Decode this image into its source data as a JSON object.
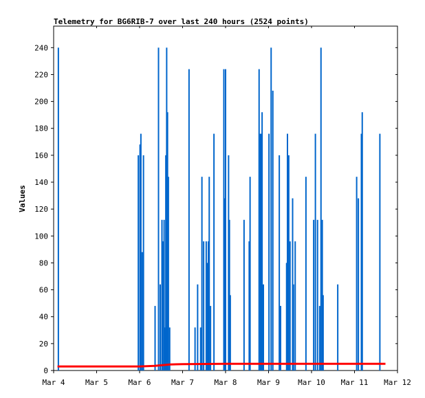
{
  "chart_data": {
    "type": "bar",
    "title": "Telemetry for BG6RIB-7 over last 240 hours (2524 points)",
    "ylabel": "Values",
    "xlabel": "",
    "ylim": [
      0,
      256
    ],
    "xlim": [
      0,
      8
    ],
    "y_ticks": [
      0,
      20,
      40,
      60,
      80,
      100,
      120,
      140,
      160,
      180,
      200,
      220,
      240
    ],
    "x_ticks": [
      {
        "x": 0,
        "label": "Mar 4"
      },
      {
        "x": 1,
        "label": "Mar 5"
      },
      {
        "x": 2,
        "label": "Mar 6"
      },
      {
        "x": 3,
        "label": "Mar 7"
      },
      {
        "x": 4,
        "label": "Mar 8"
      },
      {
        "x": 5,
        "label": "Mar 9"
      },
      {
        "x": 6,
        "label": "Mar 10"
      },
      {
        "x": 7,
        "label": "Mar 11"
      },
      {
        "x": 8,
        "label": "Mar 12"
      }
    ],
    "series": [
      {
        "color": "#0066cc",
        "style": "impulses",
        "points": [
          [
            0.11,
            240
          ],
          [
            1.97,
            160
          ],
          [
            2.01,
            168
          ],
          [
            2.03,
            176
          ],
          [
            2.06,
            88
          ],
          [
            2.09,
            160
          ],
          [
            2.36,
            48
          ],
          [
            2.44,
            240
          ],
          [
            2.48,
            64
          ],
          [
            2.52,
            112
          ],
          [
            2.54,
            96
          ],
          [
            2.57,
            112
          ],
          [
            2.59,
            32
          ],
          [
            2.61,
            160
          ],
          [
            2.63,
            240
          ],
          [
            2.65,
            192
          ],
          [
            2.67,
            144
          ],
          [
            2.7,
            32
          ],
          [
            3.15,
            224
          ],
          [
            3.29,
            32
          ],
          [
            3.35,
            64
          ],
          [
            3.42,
            32
          ],
          [
            3.45,
            144
          ],
          [
            3.49,
            96
          ],
          [
            3.55,
            96
          ],
          [
            3.58,
            80
          ],
          [
            3.6,
            96
          ],
          [
            3.62,
            144
          ],
          [
            3.65,
            48
          ],
          [
            3.73,
            176
          ],
          [
            3.96,
            224
          ],
          [
            3.98,
            128
          ],
          [
            4.0,
            224
          ],
          [
            4.07,
            160
          ],
          [
            4.09,
            112
          ],
          [
            4.11,
            56
          ],
          [
            4.43,
            112
          ],
          [
            4.55,
            96
          ],
          [
            4.57,
            144
          ],
          [
            4.78,
            224
          ],
          [
            4.81,
            176
          ],
          [
            4.83,
            176
          ],
          [
            4.85,
            192
          ],
          [
            4.88,
            64
          ],
          [
            5.01,
            176
          ],
          [
            5.06,
            240
          ],
          [
            5.1,
            208
          ],
          [
            5.25,
            160
          ],
          [
            5.28,
            48
          ],
          [
            5.42,
            80
          ],
          [
            5.44,
            176
          ],
          [
            5.47,
            160
          ],
          [
            5.5,
            96
          ],
          [
            5.56,
            128
          ],
          [
            5.58,
            64
          ],
          [
            5.62,
            96
          ],
          [
            5.87,
            144
          ],
          [
            6.05,
            112
          ],
          [
            6.09,
            176
          ],
          [
            6.14,
            112
          ],
          [
            6.19,
            48
          ],
          [
            6.22,
            240
          ],
          [
            6.25,
            112
          ],
          [
            6.27,
            56
          ],
          [
            6.61,
            64
          ],
          [
            7.05,
            144
          ],
          [
            7.09,
            128
          ],
          [
            7.16,
            176
          ],
          [
            7.18,
            192
          ],
          [
            7.59,
            176
          ]
        ]
      },
      {
        "color": "#ff0000",
        "style": "line",
        "points": [
          [
            0.09,
            3
          ],
          [
            1.0,
            3
          ],
          [
            2.0,
            3
          ],
          [
            2.35,
            3.5
          ],
          [
            2.7,
            4.5
          ],
          [
            3.0,
            4.7
          ],
          [
            4.0,
            5
          ],
          [
            5.0,
            5
          ],
          [
            6.0,
            5
          ],
          [
            7.0,
            5
          ],
          [
            7.72,
            5
          ]
        ]
      }
    ]
  }
}
